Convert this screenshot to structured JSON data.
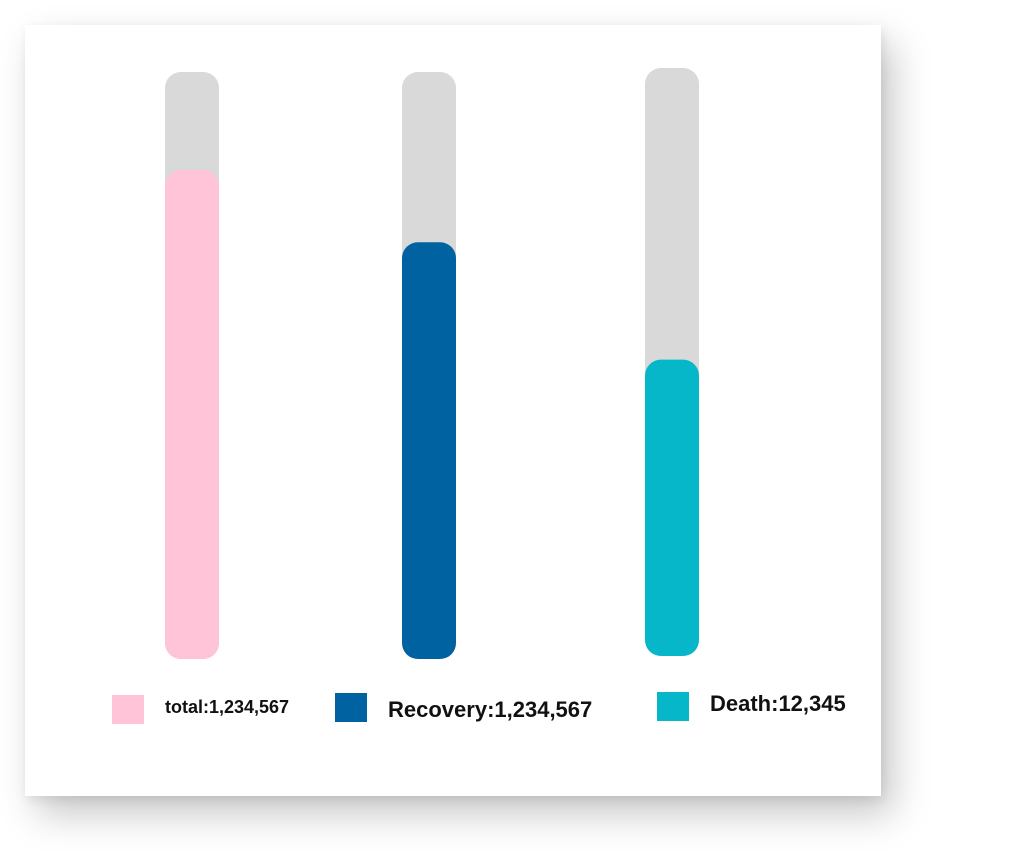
{
  "chart_data": {
    "type": "bar",
    "series": [
      {
        "name": "total",
        "label": "total:1,234,567",
        "value_text": "1,234,567",
        "fill_fraction": 0.833,
        "color": "#FFC4D7",
        "track_color": "#D9D9D9"
      },
      {
        "name": "Recovery",
        "label": "Recovery:1,234,567",
        "value_text": "1,234,567",
        "fill_fraction": 0.71,
        "color": "#0062A0",
        "track_color": "#D9D9D9"
      },
      {
        "name": "Death",
        "label": "Death:12,345",
        "value_text": "12,345",
        "fill_fraction": 0.504,
        "color": "#06B7C9",
        "track_color": "#D9D9D9"
      }
    ],
    "legend_position": "bottom",
    "grid": false,
    "title": "",
    "xlabel": "",
    "ylabel": ""
  }
}
